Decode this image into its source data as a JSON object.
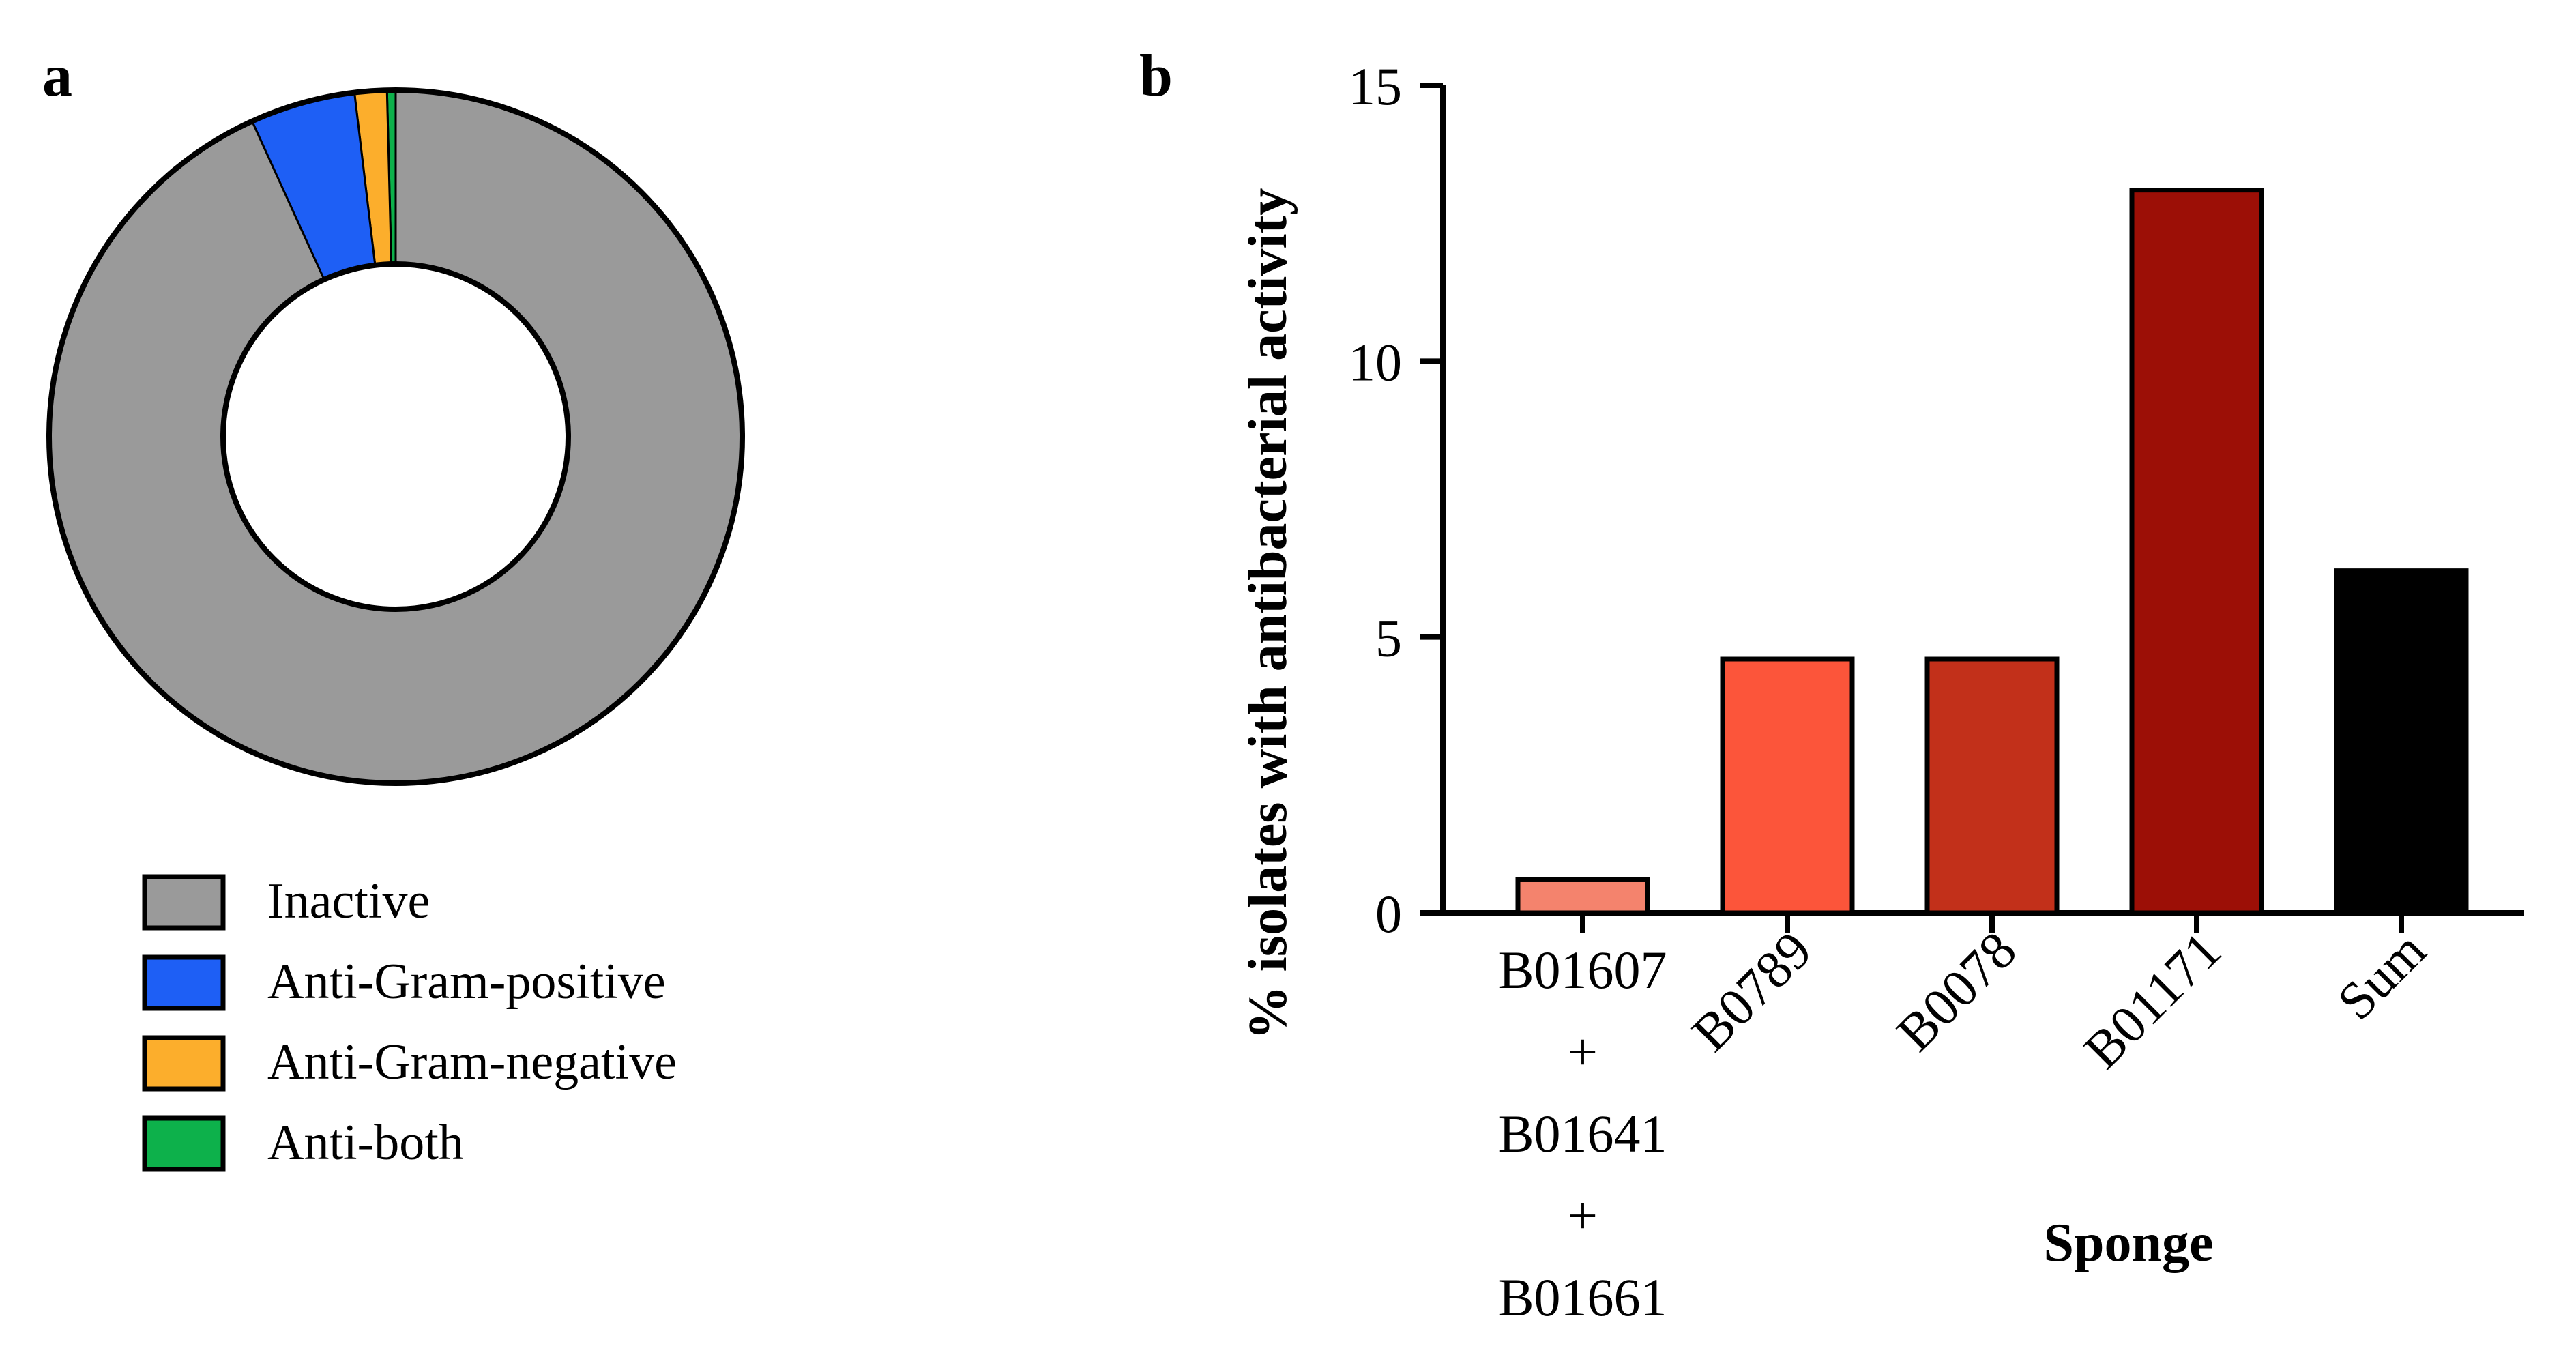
{
  "panels": {
    "a": "a",
    "b": "b"
  },
  "chart_data": [
    {
      "type": "pie",
      "variant": "donut",
      "categories": [
        "Inactive",
        "Anti-Gram-positive",
        "Anti-Gram-negative",
        "Anti-both"
      ],
      "values": [
        93.2,
        4.9,
        1.5,
        0.4
      ],
      "colors": [
        "#9a9a9a",
        "#1e5ff5",
        "#fcae2c",
        "#0db14b"
      ],
      "legend": [
        {
          "label": "Inactive",
          "color": "#9a9a9a"
        },
        {
          "label": "Anti-Gram-positive",
          "color": "#1e5ff5"
        },
        {
          "label": "Anti-Gram-negative",
          "color": "#fcae2c"
        },
        {
          "label": "Anti-both",
          "color": "#0db14b"
        }
      ],
      "legend_position": "bottom"
    },
    {
      "type": "bar",
      "categories": [
        "B01607 + B01641 + B01661",
        "B0789",
        "B0078",
        "B01171",
        "Sum"
      ],
      "category_lines": [
        [
          "B01607",
          "+",
          "B01641",
          "+",
          "B01661"
        ],
        [
          "B0789"
        ],
        [
          "B0078"
        ],
        [
          "B01171"
        ],
        [
          "Sum"
        ]
      ],
      "values": [
        0.6,
        4.6,
        4.6,
        13.1,
        6.2
      ],
      "colors": [
        "#f4836d",
        "#fc553a",
        "#c2301a",
        "#9c0f06",
        "#000000"
      ],
      "xlabel": "Sponge",
      "ylabel": "% isolates with antibacterial activity",
      "ylim": [
        0,
        15
      ],
      "yticks": [
        0,
        5,
        10,
        15
      ],
      "grid": false
    }
  ]
}
